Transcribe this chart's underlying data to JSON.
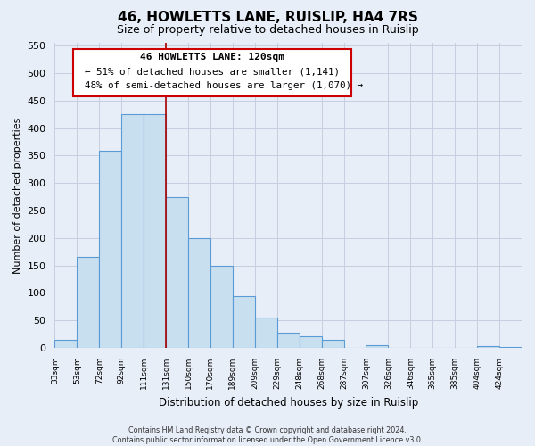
{
  "title": "46, HOWLETTS LANE, RUISLIP, HA4 7RS",
  "subtitle": "Size of property relative to detached houses in Ruislip",
  "xlabel": "Distribution of detached houses by size in Ruislip",
  "ylabel": "Number of detached properties",
  "bin_labels": [
    "33sqm",
    "53sqm",
    "72sqm",
    "92sqm",
    "111sqm",
    "131sqm",
    "150sqm",
    "170sqm",
    "189sqm",
    "209sqm",
    "229sqm",
    "248sqm",
    "268sqm",
    "287sqm",
    "307sqm",
    "326sqm",
    "346sqm",
    "365sqm",
    "385sqm",
    "404sqm",
    "424sqm"
  ],
  "bar_heights": [
    15,
    165,
    358,
    425,
    425,
    275,
    200,
    150,
    95,
    55,
    27,
    22,
    14,
    0,
    5,
    0,
    0,
    0,
    0,
    3,
    2
  ],
  "bar_color": "#c8dff0",
  "bar_edge_color": "#5b9bd5",
  "vline_x_index": 5,
  "vline_color": "#aa0000",
  "ylim": [
    0,
    555
  ],
  "yticks": [
    0,
    50,
    100,
    150,
    200,
    250,
    300,
    350,
    400,
    450,
    500,
    550
  ],
  "annotation_title": "46 HOWLETTS LANE: 120sqm",
  "annotation_line1": "← 51% of detached houses are smaller (1,141)",
  "annotation_line2": "48% of semi-detached houses are larger (1,070) →",
  "footer_line1": "Contains HM Land Registry data © Crown copyright and database right 2024.",
  "footer_line2": "Contains public sector information licensed under the Open Government Licence v3.0.",
  "background_color": "#e8eef8",
  "plot_bg_color": "#e8eef8",
  "grid_color": "#c5cfe0"
}
